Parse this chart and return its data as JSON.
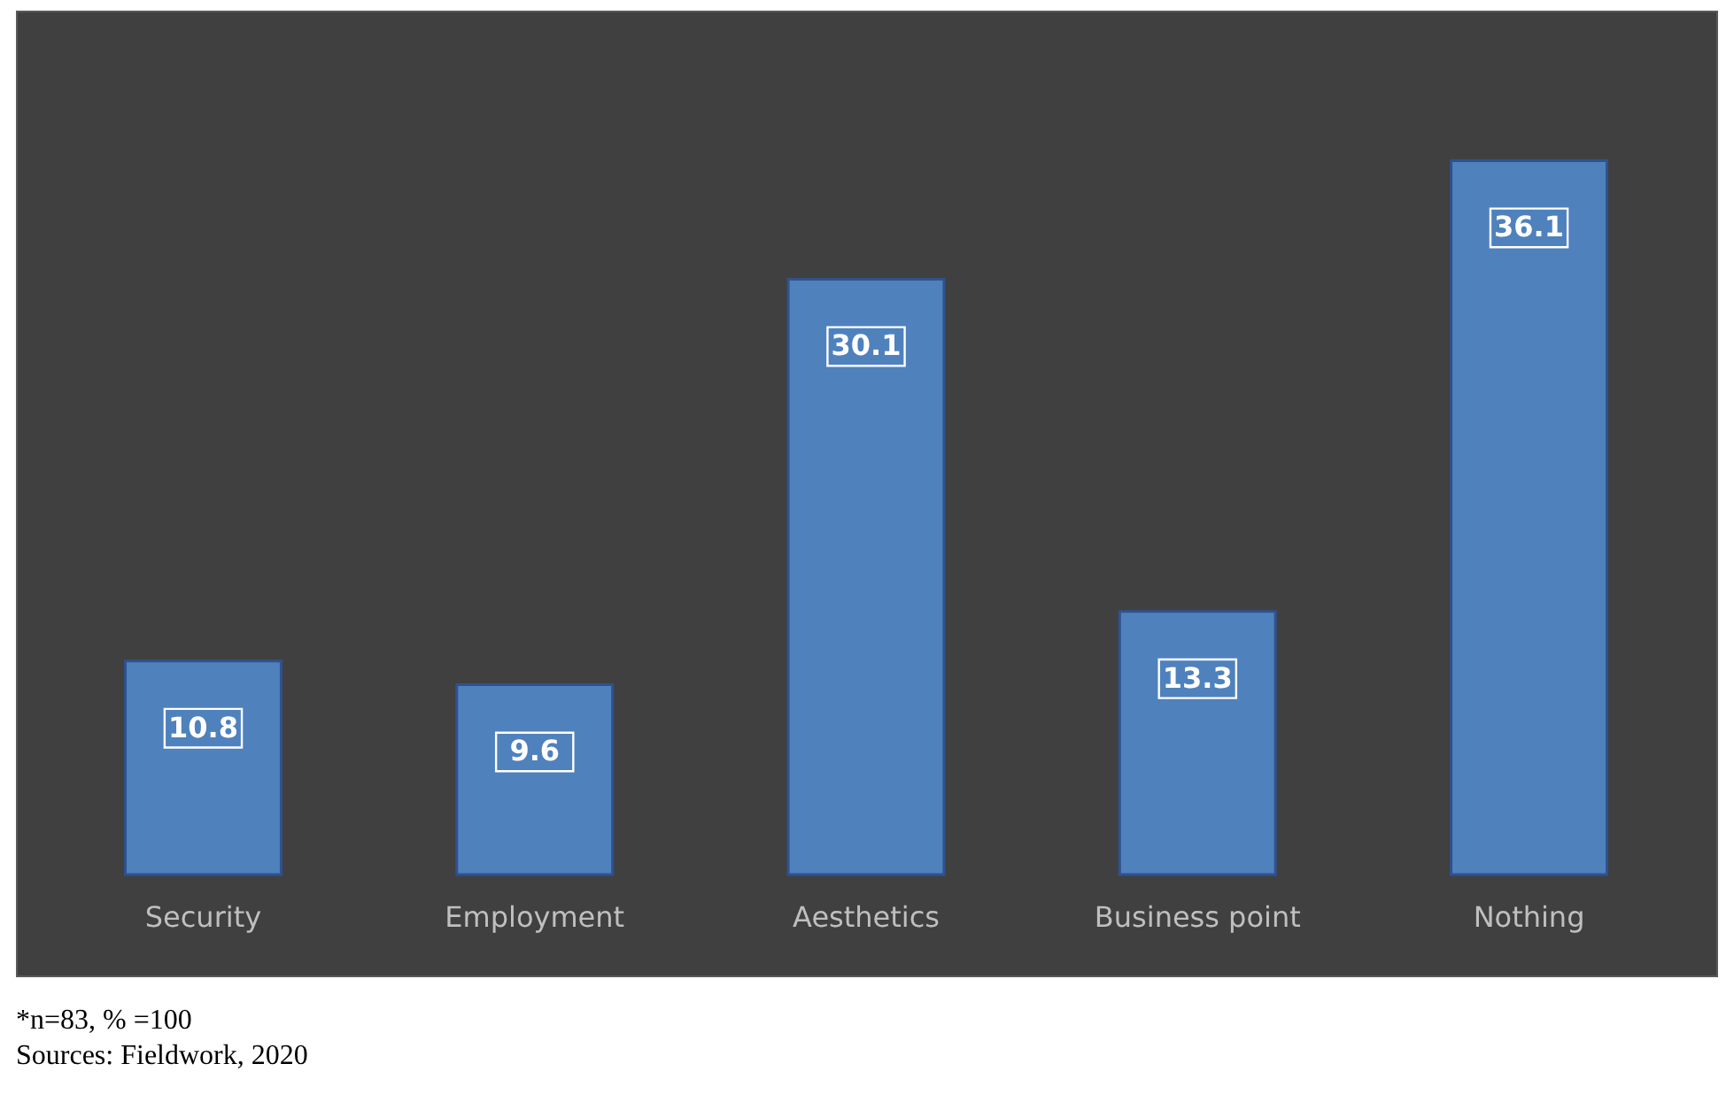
{
  "chart_data": {
    "type": "bar",
    "categories": [
      "Security",
      "Employment",
      "Aesthetics",
      "Business point",
      "Nothing"
    ],
    "values": [
      10.8,
      9.6,
      30.1,
      13.3,
      36.1
    ],
    "color": "#4f81bd",
    "data_labels": true,
    "annotations": [
      "*n=83, % =100",
      "Sources: Fieldwork, 2020"
    ]
  }
}
